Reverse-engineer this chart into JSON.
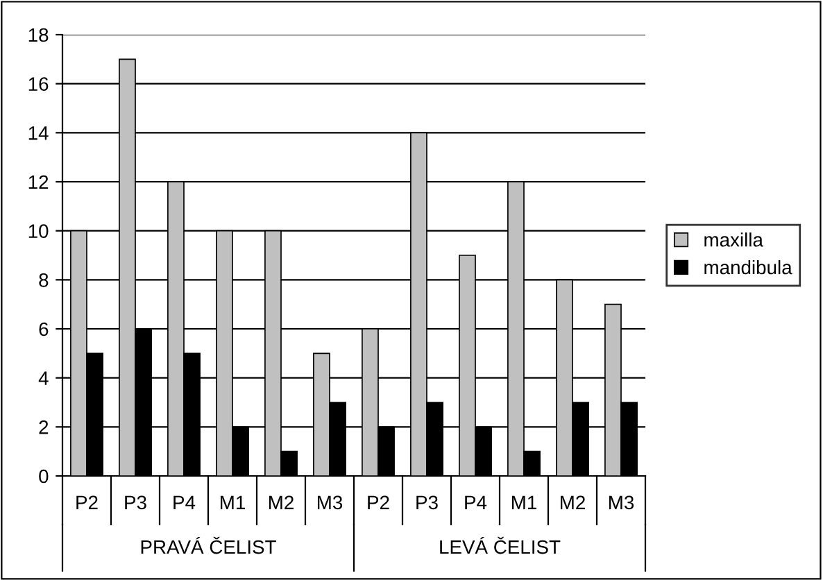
{
  "chart_data": {
    "type": "bar",
    "categories": [
      "P2",
      "P3",
      "P4",
      "M1",
      "M2",
      "M3",
      "P2",
      "P3",
      "P4",
      "M1",
      "M2",
      "M3"
    ],
    "series": [
      {
        "name": "maxilla",
        "color": "#c0c0c0",
        "values": [
          10,
          17,
          12,
          10,
          10,
          5,
          6,
          14,
          9,
          12,
          8,
          7
        ]
      },
      {
        "name": "mandibula",
        "color": "#000000",
        "values": [
          5,
          6,
          5,
          2,
          1,
          3,
          2,
          3,
          2,
          1,
          3,
          3
        ]
      }
    ],
    "ylim": [
      0,
      18
    ],
    "yticks": [
      0,
      2,
      4,
      6,
      8,
      10,
      12,
      14,
      16,
      18
    ],
    "grid": "y",
    "legend": "right",
    "annotations": [
      "PRAVÁ ČELIST",
      "LEVÁ ČELIST"
    ]
  }
}
